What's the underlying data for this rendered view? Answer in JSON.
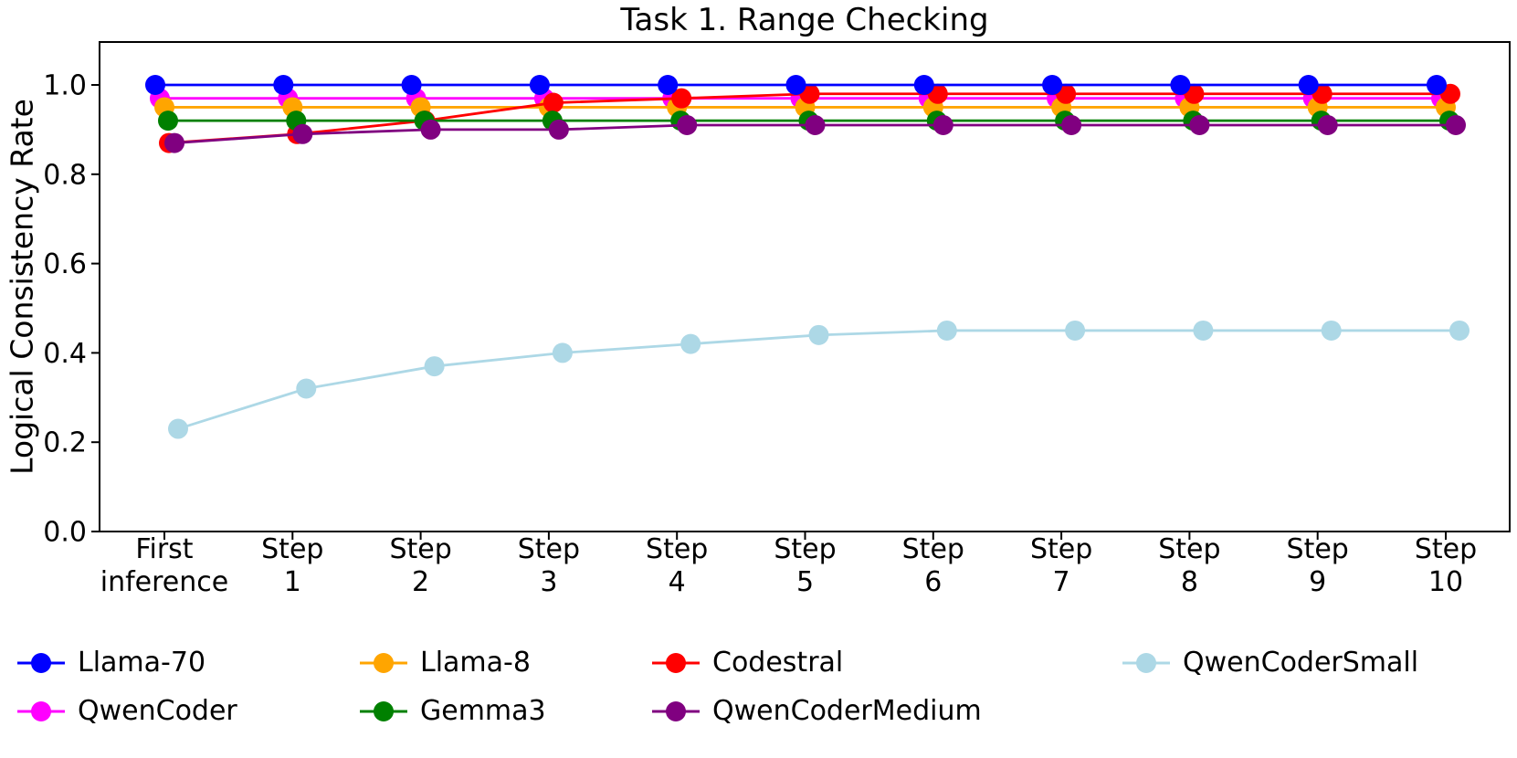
{
  "chart_data": {
    "type": "line",
    "title": "Task 1. Range Checking",
    "xlabel": "",
    "ylabel": "Logical Consistency Rate",
    "background_color": "#ffffff",
    "grid": false,
    "ylim": [
      0.0,
      1.096
    ],
    "yticks": [
      "0.0",
      "0.2",
      "0.4",
      "0.6",
      "0.8",
      "1.0"
    ],
    "categories": [
      {
        "line1": "First",
        "line2": "inference"
      },
      {
        "line1": "Step",
        "line2": "1"
      },
      {
        "line1": "Step",
        "line2": "2"
      },
      {
        "line1": "Step",
        "line2": "3"
      },
      {
        "line1": "Step",
        "line2": "4"
      },
      {
        "line1": "Step",
        "line2": "5"
      },
      {
        "line1": "Step",
        "line2": "6"
      },
      {
        "line1": "Step",
        "line2": "7"
      },
      {
        "line1": "Step",
        "line2": "8"
      },
      {
        "line1": "Step",
        "line2": "9"
      },
      {
        "line1": "Step",
        "line2": "10"
      }
    ],
    "series": [
      {
        "name": "Llama-70",
        "color": "#0000FF",
        "values": [
          1.0,
          1.0,
          1.0,
          1.0,
          1.0,
          1.0,
          1.0,
          1.0,
          1.0,
          1.0,
          1.0
        ]
      },
      {
        "name": "QwenCoder",
        "color": "#FF00FF",
        "values": [
          0.97,
          0.97,
          0.97,
          0.97,
          0.97,
          0.97,
          0.97,
          0.97,
          0.97,
          0.97,
          0.97
        ]
      },
      {
        "name": "Llama-8",
        "color": "#FFA500",
        "values": [
          0.95,
          0.95,
          0.95,
          0.95,
          0.95,
          0.95,
          0.95,
          0.95,
          0.95,
          0.95,
          0.95
        ]
      },
      {
        "name": "Gemma3",
        "color": "#008000",
        "values": [
          0.92,
          0.92,
          0.92,
          0.92,
          0.92,
          0.92,
          0.92,
          0.92,
          0.92,
          0.92,
          0.92
        ]
      },
      {
        "name": "Codestral",
        "color": "#FF0000",
        "values": [
          0.87,
          0.89,
          0.92,
          0.96,
          0.97,
          0.98,
          0.98,
          0.98,
          0.98,
          0.98,
          0.98
        ]
      },
      {
        "name": "QwenCoderMedium",
        "color": "#800080",
        "values": [
          0.87,
          0.89,
          0.9,
          0.9,
          0.91,
          0.91,
          0.91,
          0.91,
          0.91,
          0.91,
          0.91
        ]
      },
      {
        "name": "QwenCoderSmall",
        "color": "#ADD8E6",
        "values": [
          0.23,
          0.32,
          0.37,
          0.4,
          0.42,
          0.44,
          0.45,
          0.45,
          0.45,
          0.45,
          0.45
        ]
      }
    ],
    "legend_position": "below",
    "legend_rows": [
      [
        "Llama-70",
        "Llama-8",
        "Codestral",
        "QwenCoderSmall"
      ],
      [
        "QwenCoder",
        "Gemma3",
        "QwenCoderMedium"
      ]
    ]
  }
}
